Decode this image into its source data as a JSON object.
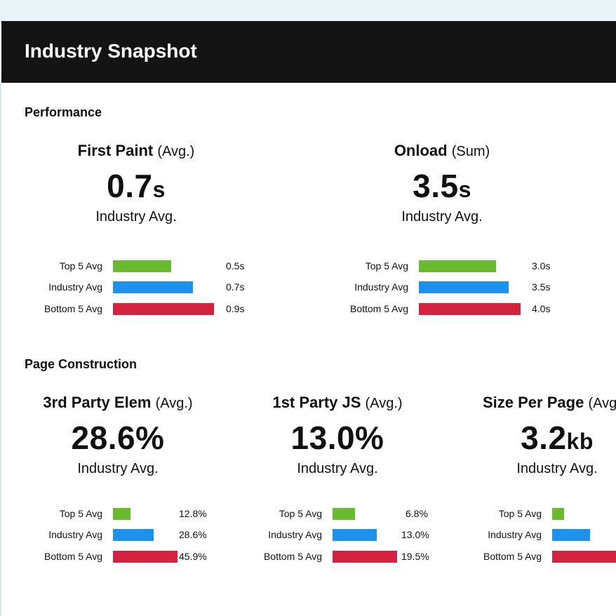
{
  "header": {
    "title": "Industry Snapshot"
  },
  "colors": {
    "top": "#6aba2f",
    "industry": "#1e90ee",
    "bottom": "#d3233f",
    "titlebar": "#141414"
  },
  "sections": [
    {
      "title": "Performance",
      "metrics": [
        {
          "name": "First Paint",
          "qualifier": "(Avg.)",
          "value": "0.7",
          "unit": "s",
          "sublabel": "Industry Avg.",
          "rows": [
            {
              "label": "Top 5 Avg",
              "value": "0.5s",
              "amount": 0.5
            },
            {
              "label": "Industry Avg",
              "value": "0.7s",
              "amount": 0.7
            },
            {
              "label": "Bottom 5 Avg",
              "value": "0.9s",
              "amount": 0.9
            }
          ]
        },
        {
          "name": "Onload",
          "qualifier": "(Sum)",
          "value": "3.5",
          "unit": "s",
          "sublabel": "Industry Avg.",
          "rows": [
            {
              "label": "Top 5 Avg",
              "value": "3.0s",
              "amount": 3.0
            },
            {
              "label": "Industry Avg",
              "value": "3.5s",
              "amount": 3.5
            },
            {
              "label": "Bottom 5 Avg",
              "value": "4.0s",
              "amount": 4.0
            }
          ]
        }
      ]
    },
    {
      "title": "Page Construction",
      "metrics": [
        {
          "name": "3rd Party Elem",
          "qualifier": "(Avg.)",
          "value": "28.6%",
          "unit": "",
          "sublabel": "Industry Avg.",
          "rows": [
            {
              "label": "Top 5 Avg",
              "value": "12.8%",
              "amount": 12.8
            },
            {
              "label": "Industry Avg",
              "value": "28.6%",
              "amount": 28.6
            },
            {
              "label": "Bottom 5 Avg",
              "value": "45.9%",
              "amount": 45.9
            }
          ]
        },
        {
          "name": "1st Party JS",
          "qualifier": "(Avg.)",
          "value": "13.0%",
          "unit": "",
          "sublabel": "Industry Avg.",
          "rows": [
            {
              "label": "Top 5 Avg",
              "value": "6.8%",
              "amount": 6.8
            },
            {
              "label": "Industry Avg",
              "value": "13.0%",
              "amount": 13.0
            },
            {
              "label": "Bottom 5 Avg",
              "value": "19.5%",
              "amount": 19.5
            }
          ]
        },
        {
          "name": "Size Per Page",
          "qualifier": "(Avg",
          "value": "3.2",
          "unit": "kb",
          "sublabel": "Industry Avg.",
          "rows": [
            {
              "label": "Top 5 Avg"
            },
            {
              "label": "Industry Avg"
            },
            {
              "label": "Bottom 5 Avg"
            }
          ]
        }
      ]
    }
  ]
}
